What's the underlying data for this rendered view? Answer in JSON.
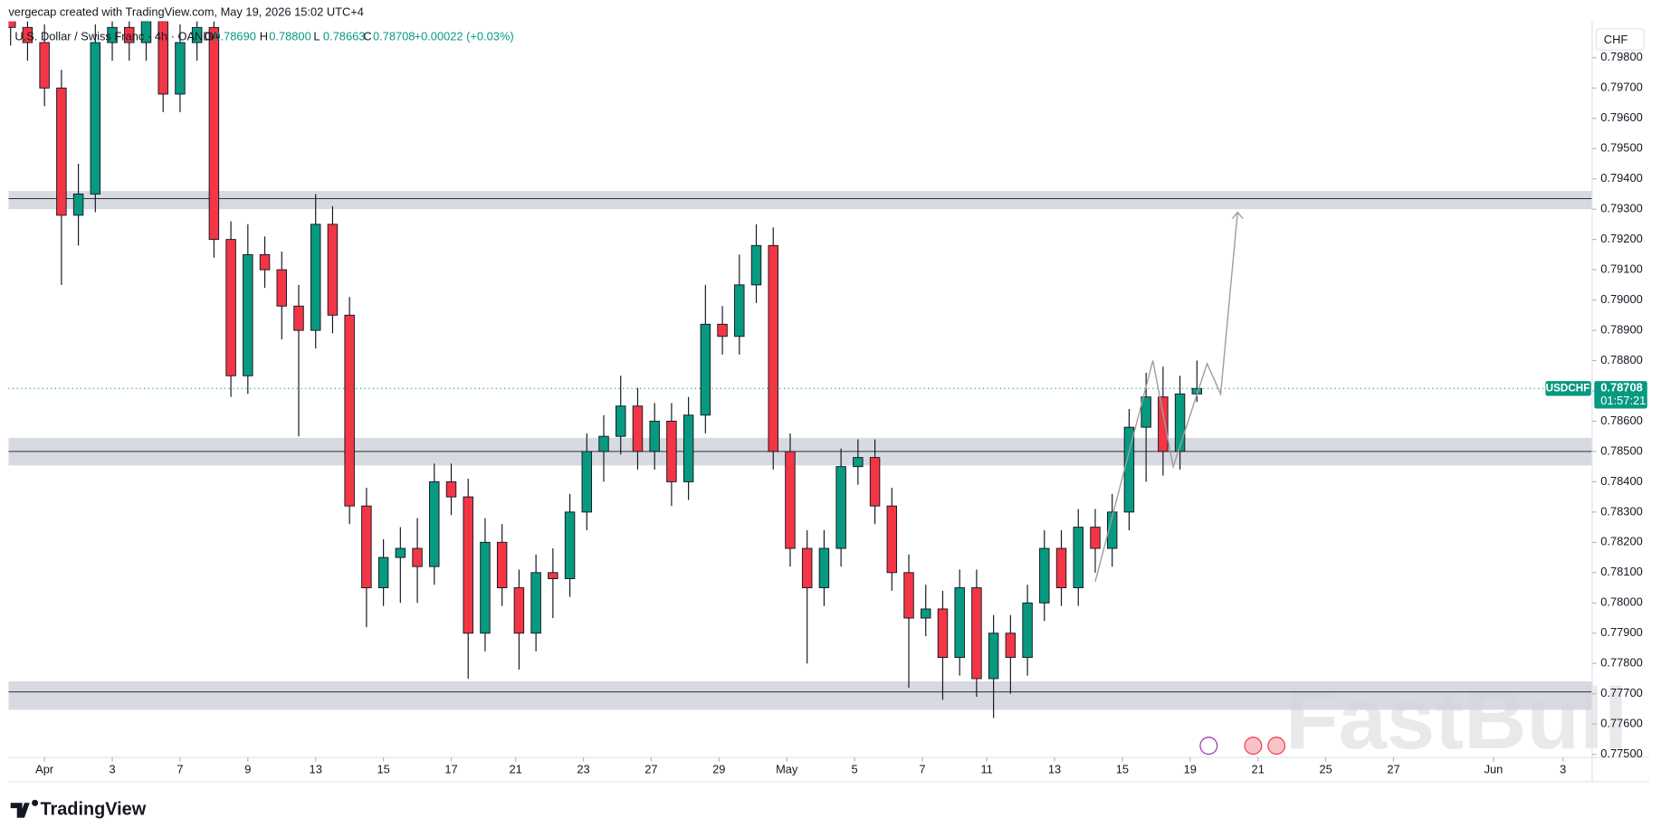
{
  "chart_data": {
    "type": "candlestick",
    "attribution": "vergecap created with TradingView.com, May 19, 2026 15:02 UTC+4",
    "title": "U.S. Dollar / Swiss Franc · 4h · OANDA",
    "legend": {
      "labels": [
        "O",
        "H",
        "L",
        "C"
      ],
      "value_labels": [
        "0.78690",
        "0.78800",
        "0.78663",
        "0.78708"
      ],
      "change": "+0.00022 (+0.03%)"
    },
    "currency": "CHF",
    "countdown": "01:57:21",
    "logo": "TradingView",
    "watermark": "FastBull",
    "series": [
      {
        "name": "USDCHF",
        "up_color": "#089981",
        "down_color": "#f23645",
        "x": [
          -1,
          -0.5,
          0,
          0.5,
          1,
          1.5,
          2,
          2.5,
          3,
          3.5,
          4,
          4.5,
          5,
          5.5,
          6,
          6.5,
          7,
          7.5,
          8,
          8.5,
          9,
          9.5,
          10,
          10.5,
          11,
          11.5,
          12,
          12.5,
          13,
          13.5,
          14,
          14.5,
          15,
          15.5,
          16,
          16.5,
          17,
          17.5,
          18,
          18.5,
          19,
          19.5,
          20,
          20.5,
          21,
          21.5,
          22,
          22.5,
          23,
          23.5,
          24,
          24.5,
          25,
          25.5,
          26,
          26.5,
          27,
          27.5,
          28,
          28.5,
          29,
          29.5,
          30,
          30.5,
          31,
          31.5,
          32,
          32.5,
          33,
          33.5,
          34
        ],
        "open": [
          0.7995,
          0.799,
          0.7985,
          0.797,
          0.7928,
          0.7935,
          0.7985,
          0.799,
          0.7985,
          0.7992,
          0.7968,
          0.7985,
          0.799,
          0.792,
          0.7875,
          0.7915,
          0.791,
          0.7898,
          0.789,
          0.7925,
          0.7895,
          0.7832,
          0.7805,
          0.7815,
          0.7818,
          0.7812,
          0.784,
          0.7835,
          0.779,
          0.782,
          0.7805,
          0.779,
          0.781,
          0.7808,
          0.783,
          0.785,
          0.7855,
          0.7865,
          0.785,
          0.786,
          0.784,
          0.7862,
          0.7892,
          0.7888,
          0.7905,
          0.7918,
          0.785,
          0.7818,
          0.7805,
          0.7818,
          0.7845,
          0.7848,
          0.7832,
          0.781,
          0.7795,
          0.7798,
          0.7782,
          0.7805,
          0.7775,
          0.779,
          0.7782,
          0.78,
          0.7818,
          0.7805,
          0.7825,
          0.7818,
          0.783,
          0.7858,
          0.7868,
          0.785,
          0.7869
        ],
        "high": [
          0.8001,
          0.7996,
          0.7991,
          0.7976,
          0.7945,
          0.7991,
          0.7998,
          0.7996,
          0.7998,
          0.7998,
          0.7991,
          0.7998,
          0.7996,
          0.7926,
          0.7925,
          0.7921,
          0.7916,
          0.7905,
          0.7935,
          0.7931,
          0.7901,
          0.7838,
          0.7821,
          0.7825,
          0.7828,
          0.7846,
          0.7846,
          0.7841,
          0.7828,
          0.7826,
          0.7811,
          0.7816,
          0.7818,
          0.7836,
          0.7856,
          0.7862,
          0.7875,
          0.7871,
          0.7866,
          0.7866,
          0.7868,
          0.7905,
          0.7898,
          0.7915,
          0.7925,
          0.7924,
          0.7856,
          0.7824,
          0.7824,
          0.7851,
          0.7854,
          0.7854,
          0.7838,
          0.7816,
          0.7806,
          0.7804,
          0.7811,
          0.7811,
          0.7796,
          0.7796,
          0.7806,
          0.7824,
          0.7824,
          0.7831,
          0.7831,
          0.7836,
          0.7864,
          0.7876,
          0.7878,
          0.7875,
          0.788
        ],
        "low": [
          0.7984,
          0.7979,
          0.7964,
          0.7905,
          0.7918,
          0.7929,
          0.7979,
          0.7979,
          0.7979,
          0.7962,
          0.7962,
          0.7979,
          0.7914,
          0.7868,
          0.7869,
          0.7904,
          0.7887,
          0.7855,
          0.7884,
          0.7889,
          0.7826,
          0.7792,
          0.7799,
          0.78,
          0.78,
          0.7806,
          0.7829,
          0.7775,
          0.7784,
          0.7799,
          0.7778,
          0.7784,
          0.7795,
          0.7802,
          0.7824,
          0.784,
          0.7849,
          0.7844,
          0.7844,
          0.7832,
          0.7834,
          0.7856,
          0.7882,
          0.7882,
          0.7899,
          0.7844,
          0.7812,
          0.778,
          0.7799,
          0.7812,
          0.7839,
          0.7826,
          0.7804,
          0.7772,
          0.7789,
          0.7768,
          0.7776,
          0.7769,
          0.7762,
          0.777,
          0.7776,
          0.7794,
          0.7799,
          0.7799,
          0.781,
          0.7812,
          0.7824,
          0.784,
          0.7842,
          0.7844,
          0.78663
        ],
        "close": [
          0.799,
          0.7985,
          0.797,
          0.7928,
          0.7935,
          0.7985,
          0.799,
          0.7985,
          0.7992,
          0.7968,
          0.7985,
          0.799,
          0.792,
          0.7875,
          0.7915,
          0.791,
          0.7898,
          0.789,
          0.7925,
          0.7895,
          0.7832,
          0.7805,
          0.7815,
          0.7818,
          0.7812,
          0.784,
          0.7835,
          0.779,
          0.782,
          0.7805,
          0.779,
          0.781,
          0.7808,
          0.783,
          0.785,
          0.7855,
          0.7865,
          0.785,
          0.786,
          0.784,
          0.7862,
          0.7892,
          0.7888,
          0.7905,
          0.7918,
          0.785,
          0.7818,
          0.7805,
          0.7818,
          0.7845,
          0.7848,
          0.7832,
          0.781,
          0.7795,
          0.7798,
          0.7782,
          0.7805,
          0.7775,
          0.779,
          0.7782,
          0.78,
          0.7818,
          0.7805,
          0.7825,
          0.7818,
          0.783,
          0.7858,
          0.7868,
          0.785,
          0.7869,
          0.78708
        ]
      }
    ],
    "zones": [
      {
        "top": 0.7936,
        "bottom": 0.793,
        "line": 0.79335
      },
      {
        "top": 0.78545,
        "bottom": 0.78454,
        "line": 0.785
      },
      {
        "top": 0.77741,
        "bottom": 0.77647,
        "line": 0.77706
      }
    ],
    "projection": {
      "x": [
        31.0,
        32.7,
        33.3,
        34.3,
        34.7,
        35.2
      ],
      "y": [
        0.7807,
        0.788,
        0.7845,
        0.7879,
        0.7869,
        0.7929
      ],
      "color": "#9e9e9e"
    },
    "xlim": [
      -1.0625,
      45.66
    ],
    "ylim": [
      0.7749,
      0.7992
    ],
    "grid": false,
    "xticks": [
      {
        "value": 0,
        "label": "Apr"
      },
      {
        "value": 2,
        "label": "3"
      },
      {
        "value": 4,
        "label": "7"
      },
      {
        "value": 6,
        "label": "9"
      },
      {
        "value": 8,
        "label": "13"
      },
      {
        "value": 10,
        "label": "15"
      },
      {
        "value": 12,
        "label": "17"
      },
      {
        "value": 13.9,
        "label": "21"
      },
      {
        "value": 15.9,
        "label": "23"
      },
      {
        "value": 17.9,
        "label": "27"
      },
      {
        "value": 19.9,
        "label": "29"
      },
      {
        "value": 21.9,
        "label": "May"
      },
      {
        "value": 23.9,
        "label": "5"
      },
      {
        "value": 25.9,
        "label": "7"
      },
      {
        "value": 27.8,
        "label": "11"
      },
      {
        "value": 29.8,
        "label": "13"
      },
      {
        "value": 31.8,
        "label": "15"
      },
      {
        "value": 33.8,
        "label": "19"
      },
      {
        "value": 35.8,
        "label": "21"
      },
      {
        "value": 37.8,
        "label": "25"
      },
      {
        "value": 39.8,
        "label": "27"
      },
      {
        "value": 42.75,
        "label": "Jun"
      },
      {
        "value": 44.8,
        "label": "3"
      }
    ],
    "yticks": [
      {
        "value": 0.775,
        "label": "0.77500"
      },
      {
        "value": 0.776,
        "label": "0.77600"
      },
      {
        "value": 0.777,
        "label": "0.77700"
      },
      {
        "value": 0.778,
        "label": "0.77800"
      },
      {
        "value": 0.779,
        "label": "0.77900"
      },
      {
        "value": 0.78,
        "label": "0.78000"
      },
      {
        "value": 0.781,
        "label": "0.78100"
      },
      {
        "value": 0.782,
        "label": "0.78200"
      },
      {
        "value": 0.783,
        "label": "0.78300"
      },
      {
        "value": 0.784,
        "label": "0.78400"
      },
      {
        "value": 0.785,
        "label": "0.78500"
      },
      {
        "value": 0.786,
        "label": "0.78600"
      },
      {
        "value": 0.787,
        "label": "0.78700"
      },
      {
        "value": 0.788,
        "label": "0.78800"
      },
      {
        "value": 0.789,
        "label": "0.78900"
      },
      {
        "value": 0.79,
        "label": "0.79000"
      },
      {
        "value": 0.791,
        "label": "0.79100"
      },
      {
        "value": 0.792,
        "label": "0.79200"
      },
      {
        "value": 0.793,
        "label": "0.79300"
      },
      {
        "value": 0.794,
        "label": "0.79400"
      },
      {
        "value": 0.795,
        "label": "0.79500"
      },
      {
        "value": 0.796,
        "label": "0.79600"
      },
      {
        "value": 0.797,
        "label": "0.79700"
      },
      {
        "value": 0.798,
        "label": "0.79800"
      }
    ]
  }
}
